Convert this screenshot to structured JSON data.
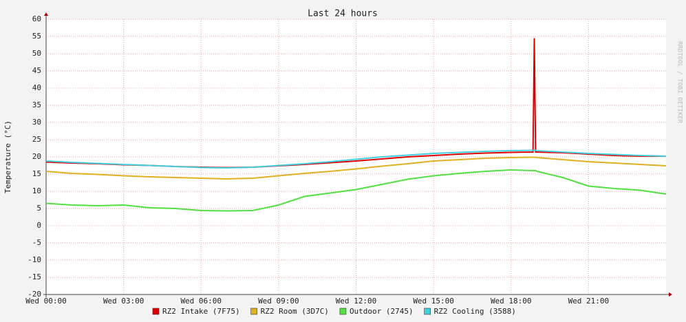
{
  "chart_data": {
    "type": "line",
    "title": "Last 24 hours",
    "y_label": "Temperature (°C)",
    "watermark": "RRDTOOL / TOBI OETIKER",
    "x": [
      0,
      1,
      2,
      3,
      4,
      5,
      6,
      7,
      8,
      9,
      10,
      11,
      12,
      13,
      14,
      15,
      16,
      17,
      18,
      18.85,
      18.9,
      18.95,
      19,
      20,
      21,
      22,
      23,
      24
    ],
    "xlim": [
      0,
      24
    ],
    "xticks": [
      {
        "value": 0,
        "label": "Wed 00:00"
      },
      {
        "value": 3,
        "label": "Wed 03:00"
      },
      {
        "value": 6,
        "label": "Wed 06:00"
      },
      {
        "value": 9,
        "label": "Wed 09:00"
      },
      {
        "value": 12,
        "label": "Wed 12:00"
      },
      {
        "value": 15,
        "label": "Wed 15:00"
      },
      {
        "value": 18,
        "label": "Wed 18:00"
      },
      {
        "value": 21,
        "label": "Wed 21:00"
      }
    ],
    "ylim": [
      -20,
      60
    ],
    "yticks": [
      -20,
      -15,
      -10,
      -5,
      0,
      5,
      10,
      15,
      20,
      25,
      30,
      35,
      40,
      45,
      50,
      55,
      60
    ],
    "grid": true,
    "series": [
      {
        "name": "RZ2 Intake (7F75)",
        "color": "#e00000",
        "values": [
          18.5,
          18.2,
          18,
          17.7,
          17.5,
          17.2,
          17,
          16.9,
          17,
          17.4,
          17.8,
          18.3,
          18.8,
          19.4,
          20,
          20.4,
          20.8,
          21.1,
          21.3,
          21.4,
          54.5,
          21.4,
          21.4,
          21.2,
          20.8,
          20.4,
          20.2,
          20.2
        ]
      },
      {
        "name": "RZ2 Room (3D7C)",
        "color": "#e0b020",
        "values": [
          15.8,
          15.2,
          14.9,
          14.5,
          14.2,
          14,
          13.8,
          13.6,
          13.8,
          14.5,
          15.2,
          15.8,
          16.5,
          17.3,
          18,
          18.8,
          19.2,
          19.6,
          19.8,
          19.9,
          19.9,
          19.9,
          19.8,
          19.2,
          18.6,
          18.2,
          17.8,
          17.4
        ]
      },
      {
        "name": "Outdoor (2745)",
        "color": "#50e040",
        "values": [
          6.5,
          6,
          5.8,
          6,
          5.2,
          5,
          4.4,
          4.3,
          4.4,
          6,
          8.5,
          9.5,
          10.5,
          12,
          13.5,
          14.5,
          15.2,
          15.8,
          16.2,
          16,
          16,
          16,
          15.8,
          14,
          11.5,
          10.8,
          10.3,
          9.2
        ]
      },
      {
        "name": "RZ2 Cooling (3588)",
        "color": "#40d0e0",
        "values": [
          18.8,
          18.4,
          18.1,
          17.8,
          17.5,
          17.2,
          16.9,
          16.8,
          17,
          17.5,
          18,
          18.6,
          19.3,
          20,
          20.5,
          21,
          21.3,
          21.6,
          21.8,
          21.9,
          21.9,
          21.9,
          21.8,
          21.4,
          21,
          20.7,
          20.4,
          20.2
        ]
      }
    ]
  }
}
